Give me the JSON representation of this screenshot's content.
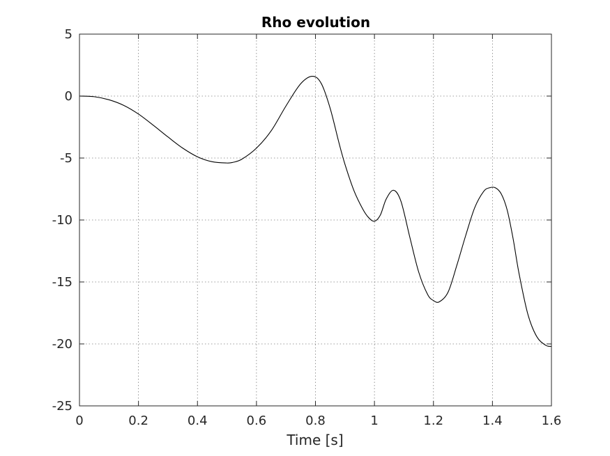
{
  "chart_data": {
    "type": "line",
    "title": "Rho evolution",
    "xlabel": "Time [s]",
    "ylabel": "",
    "xlim": [
      0,
      1.6
    ],
    "ylim": [
      -25,
      5
    ],
    "xticks": [
      0,
      0.2,
      0.4,
      0.6,
      0.8,
      1,
      1.2,
      1.4,
      1.6
    ],
    "yticks": [
      5,
      0,
      -5,
      -10,
      -15,
      -20,
      -25
    ],
    "grid": true,
    "legend": "none",
    "series": [
      {
        "color": "#000000",
        "x": [
          0,
          0.05,
          0.1,
          0.15,
          0.2,
          0.25,
          0.3,
          0.35,
          0.4,
          0.45,
          0.5,
          0.52,
          0.55,
          0.6,
          0.65,
          0.7,
          0.75,
          0.79,
          0.82,
          0.85,
          0.88,
          0.9,
          0.93,
          0.96,
          0.98,
          1.0,
          1.02,
          1.04,
          1.065,
          1.09,
          1.12,
          1.15,
          1.18,
          1.2,
          1.22,
          1.25,
          1.28,
          1.31,
          1.34,
          1.37,
          1.39,
          1.41,
          1.43,
          1.45,
          1.47,
          1.49,
          1.52,
          1.55,
          1.58,
          1.6
        ],
        "y": [
          0,
          -0.05,
          -0.3,
          -0.75,
          -1.45,
          -2.35,
          -3.3,
          -4.2,
          -4.9,
          -5.3,
          -5.4,
          -5.35,
          -5.1,
          -4.2,
          -2.8,
          -0.8,
          1.0,
          1.6,
          1.0,
          -1.0,
          -3.8,
          -5.5,
          -7.6,
          -9.1,
          -9.8,
          -10.1,
          -9.6,
          -8.3,
          -7.6,
          -8.5,
          -11.4,
          -14.2,
          -16.0,
          -16.5,
          -16.6,
          -15.8,
          -13.6,
          -11.2,
          -9.0,
          -7.7,
          -7.4,
          -7.4,
          -7.9,
          -9.2,
          -11.5,
          -14.3,
          -17.6,
          -19.4,
          -20.1,
          -20.2
        ]
      }
    ]
  }
}
